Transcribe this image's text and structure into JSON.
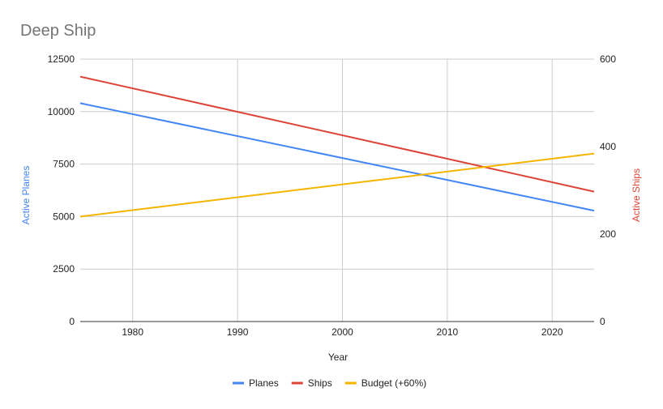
{
  "chart_data": {
    "type": "line",
    "title": "Deep Ship",
    "xlabel": "Year",
    "ylabel_left": "Active Planes",
    "ylabel_right": "Active Ships",
    "x": [
      1975,
      2024
    ],
    "xlim": [
      1975,
      2024
    ],
    "xticks": [
      1980,
      1990,
      2000,
      2010,
      2020
    ],
    "ylim_left": [
      0,
      12500
    ],
    "yticks_left": [
      0,
      2500,
      5000,
      7500,
      10000,
      12500
    ],
    "ylim_right": [
      0,
      600
    ],
    "yticks_right": [
      0,
      200,
      400,
      600
    ],
    "grid": true,
    "legend_position": "bottom",
    "series": [
      {
        "name": "Planes",
        "axis": "left",
        "color": "#4285f4",
        "values": [
          10400,
          5280
        ]
      },
      {
        "name": "Ships",
        "axis": "right",
        "color": "#db4437",
        "values": [
          560,
          297
        ]
      },
      {
        "name": "Budget (+60%)",
        "axis": "left",
        "color": "#f4b400",
        "values": [
          5000,
          8000
        ]
      }
    ],
    "colors": {
      "left_axis_title": "#4285f4",
      "right_axis_title": "#db4437",
      "grid": "#cccccc",
      "axis_line": "#333333"
    }
  }
}
